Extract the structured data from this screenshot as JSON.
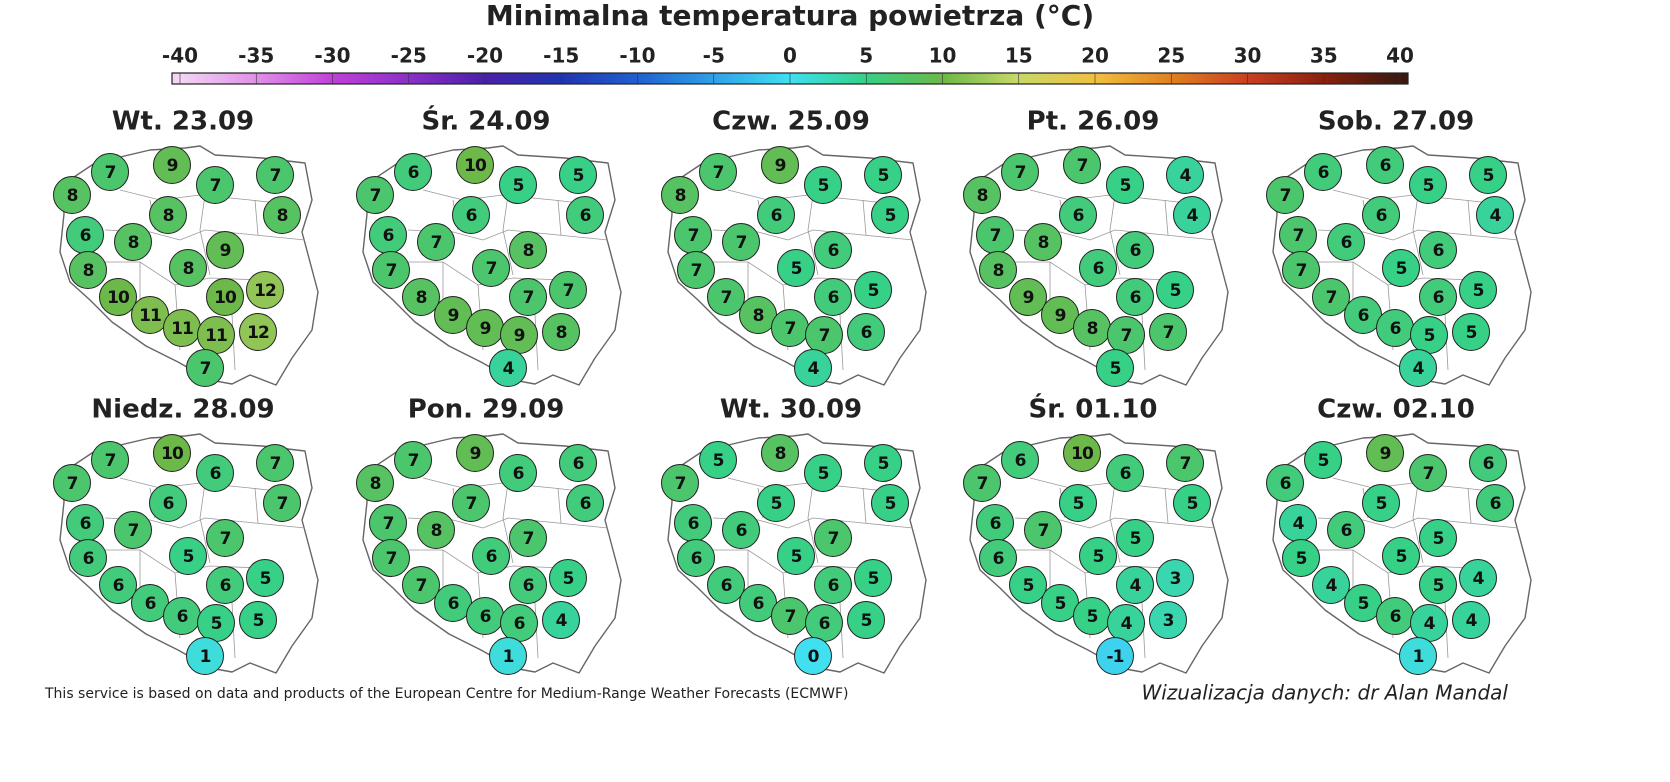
{
  "title": "Minimalna temperatura powietrza (°C)",
  "colorbar": {
    "ticks": [
      -40,
      -35,
      -30,
      -25,
      -20,
      -15,
      -10,
      -5,
      0,
      5,
      10,
      15,
      20,
      25,
      30,
      35,
      40
    ],
    "colors": [
      "#f2d6f4",
      "#e090e8",
      "#c040d8",
      "#8a30c8",
      "#4a20a8",
      "#2034b0",
      "#2060d0",
      "#30a0e8",
      "#40e0f0",
      "#36d086",
      "#6cb848",
      "#c8d868",
      "#f0c040",
      "#e08020",
      "#c84020",
      "#8a2010",
      "#3a1a10"
    ]
  },
  "panels": [
    {
      "date": "Wt. 23.09",
      "values": [
        7,
        9,
        8,
        7,
        7,
        8,
        8,
        6,
        8,
        9,
        8,
        8,
        10,
        10,
        12,
        11,
        11,
        11,
        12,
        7
      ]
    },
    {
      "date": "Śr. 24.09",
      "values": [
        6,
        10,
        7,
        5,
        5,
        6,
        6,
        6,
        7,
        8,
        7,
        7,
        8,
        7,
        7,
        9,
        9,
        9,
        8,
        4
      ]
    },
    {
      "date": "Czw. 25.09",
      "values": [
        7,
        9,
        8,
        5,
        5,
        5,
        6,
        7,
        7,
        6,
        7,
        5,
        7,
        6,
        5,
        8,
        7,
        7,
        6,
        4
      ]
    },
    {
      "date": "Pt. 26.09",
      "values": [
        7,
        7,
        8,
        5,
        4,
        4,
        6,
        7,
        8,
        6,
        8,
        6,
        9,
        6,
        5,
        9,
        8,
        7,
        7,
        5
      ]
    },
    {
      "date": "Sob. 27.09",
      "values": [
        6,
        6,
        7,
        5,
        5,
        4,
        6,
        7,
        6,
        6,
        7,
        5,
        7,
        6,
        5,
        6,
        6,
        5,
        5,
        4
      ]
    },
    {
      "date": "Niedz. 28.09",
      "values": [
        7,
        10,
        7,
        6,
        7,
        7,
        6,
        6,
        7,
        7,
        6,
        5,
        6,
        6,
        5,
        6,
        6,
        5,
        5,
        1
      ]
    },
    {
      "date": "Pon. 29.09",
      "values": [
        7,
        9,
        8,
        6,
        6,
        6,
        7,
        7,
        8,
        7,
        7,
        6,
        7,
        6,
        5,
        6,
        6,
        6,
        4,
        1
      ]
    },
    {
      "date": "Wt. 30.09",
      "values": [
        5,
        8,
        7,
        5,
        5,
        5,
        5,
        6,
        6,
        7,
        6,
        5,
        6,
        6,
        5,
        6,
        7,
        6,
        5,
        0
      ]
    },
    {
      "date": "Śr. 01.10",
      "values": [
        6,
        10,
        7,
        6,
        7,
        5,
        5,
        6,
        7,
        5,
        6,
        5,
        5,
        4,
        3,
        5,
        5,
        4,
        3,
        -1
      ]
    },
    {
      "date": "Czw. 02.10",
      "values": [
        5,
        9,
        6,
        7,
        6,
        6,
        5,
        4,
        6,
        5,
        5,
        5,
        4,
        5,
        4,
        5,
        6,
        4,
        4,
        1
      ]
    }
  ],
  "footer": {
    "source": "This service is based on data and products of the European Centre for Medium-Range Weather Forecasts (ECMWF)",
    "credit": "Wizualizacja danych: dr Alan Mandal"
  }
}
